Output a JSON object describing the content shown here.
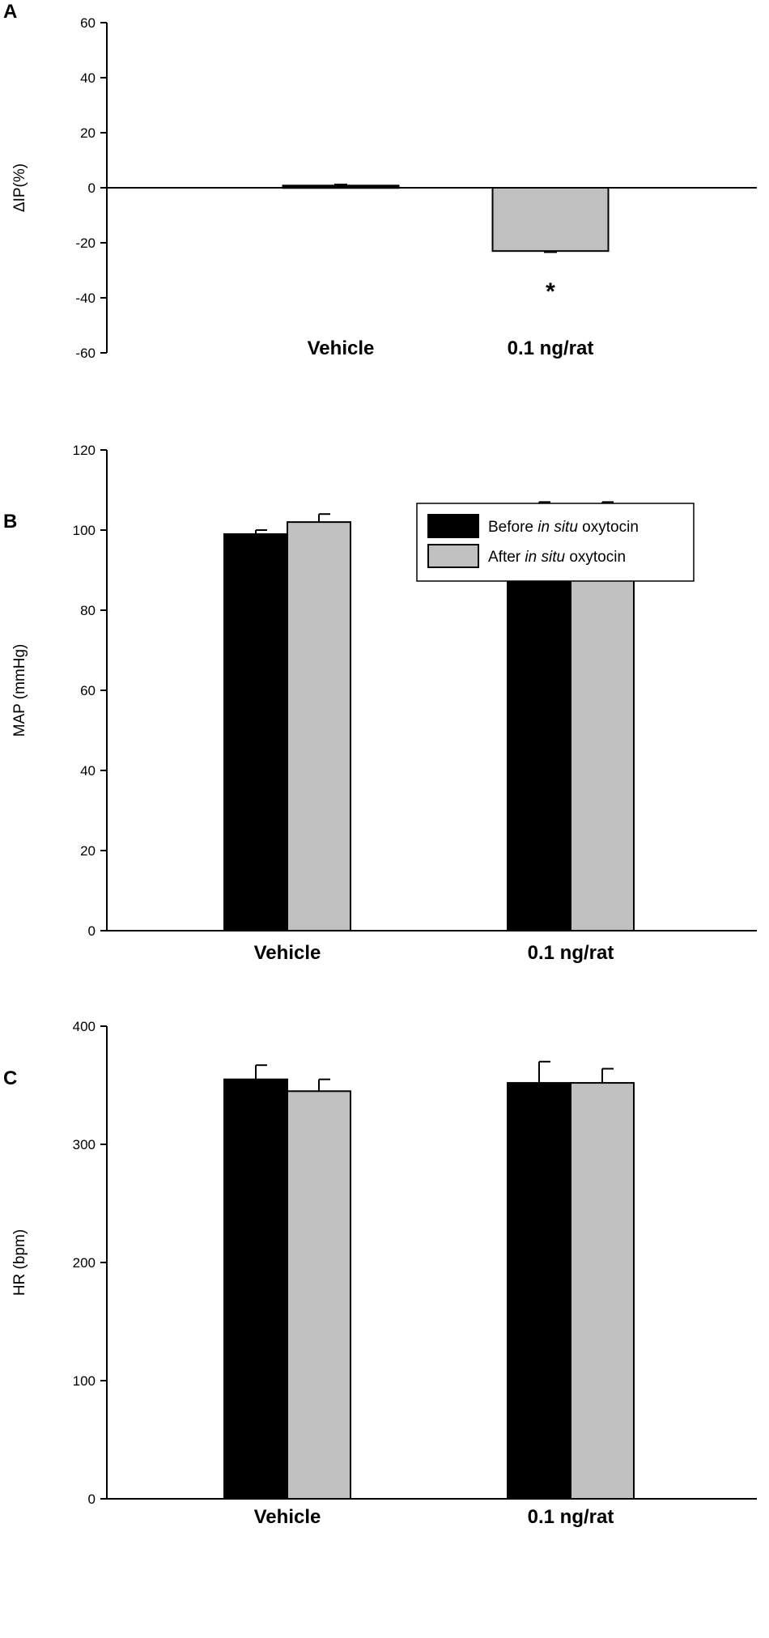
{
  "chart_data": [
    {
      "panel": "A",
      "type": "bar",
      "ylabel": "ΔIP(%)",
      "ylim": [
        -60,
        60
      ],
      "yticks": [
        60,
        40,
        20,
        0,
        -20,
        -40,
        -60
      ],
      "categories": [
        "Vehicle",
        "0.1 ng/rat"
      ],
      "series": [
        {
          "name": "ΔIP",
          "values": [
            0.8,
            -23
          ],
          "errors": [
            0.4,
            0.4
          ],
          "colors": [
            "#000000",
            "#c0c0c0"
          ]
        }
      ],
      "annotations": [
        {
          "category": "0.1 ng/rat",
          "text": "*"
        }
      ]
    },
    {
      "panel": "B",
      "type": "bar",
      "ylabel": "MAP (mmHg)",
      "ylim": [
        0,
        120
      ],
      "yticks": [
        120,
        100,
        80,
        60,
        40,
        20,
        0
      ],
      "categories": [
        "Vehicle",
        "0.1 ng/rat"
      ],
      "legend": {
        "position": "top-right",
        "entries": [
          {
            "pre": "Before ",
            "italic": "in situ",
            "post": " oxytocin",
            "color": "#000000"
          },
          {
            "pre": "After ",
            "italic": "in situ",
            "post": " oxytocin",
            "color": "#c0c0c0"
          }
        ]
      },
      "series": [
        {
          "name": "Before in situ oxytocin",
          "values": [
            99,
            105
          ],
          "errors": [
            1,
            2
          ],
          "color": "#000000"
        },
        {
          "name": "After in situ oxytocin",
          "values": [
            102,
            104
          ],
          "errors": [
            2,
            3
          ],
          "color": "#c0c0c0"
        }
      ]
    },
    {
      "panel": "C",
      "type": "bar",
      "ylabel": "HR (bpm)",
      "ylim": [
        0,
        400
      ],
      "yticks": [
        400,
        300,
        200,
        100,
        0
      ],
      "categories": [
        "Vehicle",
        "0.1 ng/rat"
      ],
      "series": [
        {
          "name": "Before in situ oxytocin",
          "values": [
            355,
            352
          ],
          "errors": [
            12,
            18
          ],
          "color": "#000000"
        },
        {
          "name": "After in situ oxytocin",
          "values": [
            345,
            352
          ],
          "errors": [
            10,
            12
          ],
          "color": "#c0c0c0"
        }
      ]
    }
  ]
}
